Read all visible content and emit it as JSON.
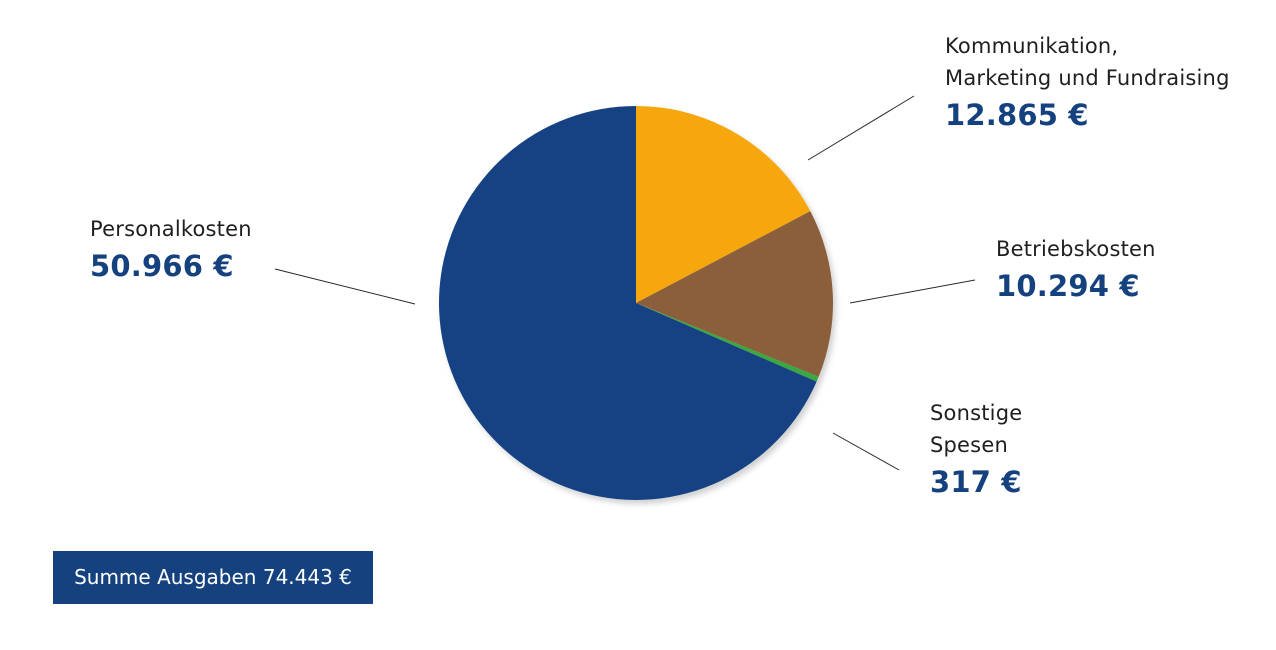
{
  "chart_data": {
    "type": "pie",
    "slices": [
      {
        "name": "Kommunikation,\nMarketing und Fundraising",
        "value": 12865,
        "value_label": "12.865 €",
        "color": "#f6a70c"
      },
      {
        "name": "Betriebskosten",
        "value": 10294,
        "value_label": "10.294 €",
        "color": "#8b5f3a"
      },
      {
        "name": "Sonstige\nSpesen",
        "value": 317,
        "value_label": "317 €",
        "color": "#3ba741"
      },
      {
        "name": "Personalkosten",
        "value": 50966,
        "value_label": "50.966 €",
        "color": "#144383"
      }
    ],
    "start_angle": "12 o'clock",
    "direction": "clockwise",
    "legend": "none"
  },
  "total": {
    "label": "Summe Ausgaben 74.443 €"
  }
}
